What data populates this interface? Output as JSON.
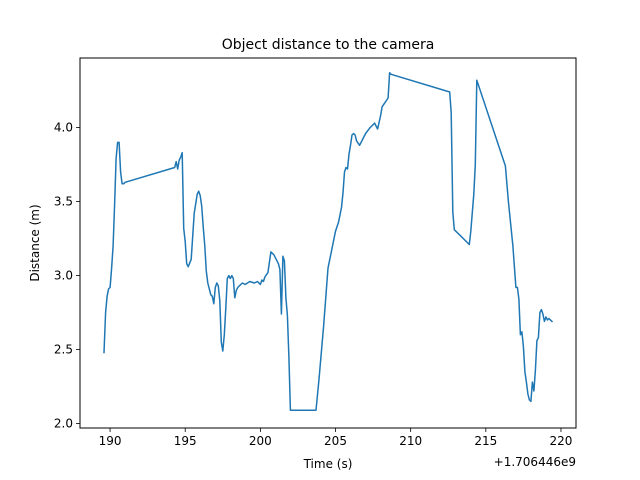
{
  "chart_data": {
    "type": "line",
    "title": "Object distance to the camera",
    "xlabel": "Time (s)",
    "ylabel": "Distance (m)",
    "x_offset_label": "+1.706446e9",
    "xlim": [
      188.0,
      221.0
    ],
    "ylim": [
      1.97,
      4.47
    ],
    "x_ticks": [
      190,
      195,
      200,
      205,
      210,
      215,
      220
    ],
    "y_ticks": [
      2.0,
      2.5,
      3.0,
      3.5,
      4.0
    ],
    "x_tick_labels": [
      "190",
      "195",
      "200",
      "205",
      "210",
      "215",
      "220"
    ],
    "y_tick_labels": [
      "2.0",
      "2.5",
      "3.0",
      "3.5",
      "4.0"
    ],
    "grid": false,
    "series": [
      {
        "color": "#1f77b4",
        "x": [
          189.6,
          189.7,
          189.8,
          189.9,
          190.0,
          190.1,
          190.2,
          190.3,
          190.4,
          190.5,
          190.6,
          190.7,
          190.8,
          190.9,
          191.0,
          194.3,
          194.4,
          194.5,
          194.6,
          194.7,
          194.8,
          194.9,
          195.0,
          195.1,
          195.2,
          195.4,
          195.6,
          195.8,
          195.9,
          196.0,
          196.1,
          196.2,
          196.3,
          196.4,
          196.5,
          196.6,
          196.7,
          196.8,
          196.9,
          197.0,
          197.1,
          197.2,
          197.3,
          197.4,
          197.5,
          197.6,
          197.7,
          197.8,
          197.9,
          198.0,
          198.1,
          198.2,
          198.3,
          198.4,
          198.5,
          198.8,
          199.0,
          199.3,
          199.6,
          199.8,
          200.0,
          200.1,
          200.2,
          200.3,
          200.5,
          200.7,
          200.9,
          201.0,
          201.2,
          201.3,
          201.4,
          201.5,
          201.6,
          201.7,
          201.8,
          201.9,
          202.0,
          202.1,
          202.2,
          202.3,
          203.7,
          203.9,
          204.2,
          204.5,
          204.8,
          205.0,
          205.2,
          205.4,
          205.5,
          205.6,
          205.7,
          205.8,
          205.9,
          206.0,
          206.1,
          206.2,
          206.3,
          206.4,
          206.6,
          206.8,
          207.0,
          207.3,
          207.6,
          207.8,
          208.0,
          208.1,
          208.3,
          208.5,
          208.6,
          208.7,
          212.6,
          212.7,
          212.8,
          212.9,
          213.9,
          214.0,
          214.2,
          214.3,
          214.4,
          216.3,
          216.5,
          216.7,
          216.8,
          217.0,
          217.1,
          217.2,
          217.3,
          217.4,
          217.5,
          217.6,
          217.7,
          217.8,
          217.9,
          218.0,
          218.1,
          218.2,
          218.3,
          218.4,
          218.5,
          218.6,
          218.7,
          218.8,
          218.9,
          219.0,
          219.1,
          219.2,
          219.3,
          219.4
        ],
        "y": [
          2.48,
          2.75,
          2.86,
          2.91,
          2.92,
          3.05,
          3.2,
          3.48,
          3.79,
          3.9,
          3.9,
          3.7,
          3.62,
          3.62,
          3.63,
          3.73,
          3.77,
          3.72,
          3.78,
          3.8,
          3.83,
          3.32,
          3.23,
          3.08,
          3.06,
          3.11,
          3.42,
          3.55,
          3.57,
          3.54,
          3.47,
          3.33,
          3.2,
          3.03,
          2.95,
          2.91,
          2.87,
          2.86,
          2.81,
          2.92,
          2.95,
          2.93,
          2.83,
          2.55,
          2.49,
          2.6,
          2.78,
          2.98,
          3.0,
          2.98,
          3.0,
          2.98,
          2.85,
          2.9,
          2.92,
          2.95,
          2.94,
          2.96,
          2.95,
          2.96,
          2.94,
          2.97,
          2.96,
          2.99,
          3.02,
          3.16,
          3.14,
          3.12,
          3.08,
          3.04,
          2.74,
          3.13,
          3.1,
          2.85,
          2.73,
          2.45,
          2.09,
          2.09,
          2.09,
          2.09,
          2.09,
          2.3,
          2.65,
          3.05,
          3.2,
          3.3,
          3.36,
          3.46,
          3.56,
          3.7,
          3.73,
          3.72,
          3.82,
          3.88,
          3.95,
          3.96,
          3.95,
          3.91,
          3.88,
          3.92,
          3.96,
          4.0,
          4.03,
          3.99,
          4.08,
          4.14,
          4.17,
          4.2,
          4.37,
          4.36,
          4.24,
          4.1,
          3.43,
          3.31,
          3.21,
          3.3,
          3.55,
          3.75,
          4.32,
          3.74,
          3.5,
          3.3,
          3.2,
          2.92,
          2.92,
          2.84,
          2.6,
          2.62,
          2.52,
          2.35,
          2.28,
          2.2,
          2.16,
          2.15,
          2.28,
          2.22,
          2.36,
          2.56,
          2.58,
          2.75,
          2.77,
          2.74,
          2.69,
          2.72,
          2.7,
          2.71,
          2.7,
          2.69
        ]
      }
    ]
  }
}
